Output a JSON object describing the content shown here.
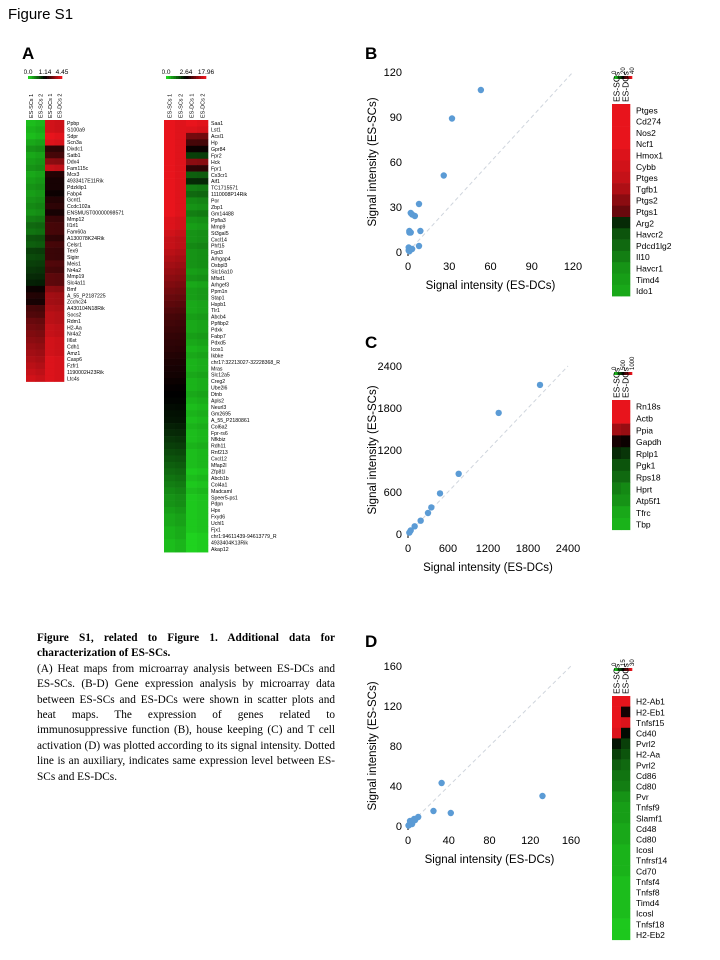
{
  "figure_title": "Figure S1",
  "panel_labels": {
    "a": "A",
    "b": "B",
    "c": "C",
    "d": "D"
  },
  "caption": {
    "heading": "Figure S1, related to Figure 1. Additional data for characterization of ES-SCs.",
    "body": "(A) Heat maps from microarray analysis between ES-DCs and ES-SCs. (B-D) Gene expression analysis by microarray data between ES-SCs and ES-DCs were shown in scatter plots and heat maps. The expression of genes related to immunosuppressive function (B), house keeping (C) and T cell activation (D) was plotted according to its signal intensity. Dotted line is an auxiliary, indicates same expression level between ES-SCs and ES-DCs."
  },
  "colors": {
    "high": "#e8141c",
    "mid": "#000000",
    "low": "#1fd21f",
    "point": "#5b9bd5",
    "diag": "#cfd5dd"
  },
  "chart_data": [
    {
      "id": "A1",
      "type": "heatmap",
      "scale_labels": [
        "0.0",
        "1.14",
        "4.45"
      ],
      "columns": [
        "ES-SCs 1",
        "ES-SCs 2",
        "ES-DCs 1",
        "ES-DCs 2"
      ],
      "rows": [
        "Ppbp",
        "S100a9",
        "Sdpr",
        "Scn3a",
        "Dixdc1",
        "Satb1",
        "Ddx4",
        "Fam115c",
        "Mcx3",
        "4933417E11Rik",
        "Pdzklip1",
        "Fabp4",
        "Gcnt1",
        "Ccdc102a",
        "ENSMUST00000098571",
        "Mmp12",
        "Il1rl1",
        "Fam60a",
        "A130078K24Rik",
        "Celsr1",
        "Tex9",
        "Sigirr",
        "Meis1",
        "Nr4a2",
        "Mmp19",
        "Slc4a11",
        "Bmf",
        "A_55_P2187225",
        "Zcchc24",
        "A430104N18Rik",
        "Socs2",
        "Rdm1",
        "H2-Aa",
        "Nr4a2",
        "Il6st",
        "Cdh1",
        "Amz1",
        "Casp6",
        "Fzfr1",
        "1190002H23Rik",
        "Ltc4s"
      ],
      "values_dc": [
        0.9,
        0.9,
        1,
        0.95,
        0.2,
        0.3,
        0.6,
        0.85,
        0.15,
        0.1,
        0.1,
        0.05,
        0.15,
        0.2,
        0.1,
        0.25,
        0.3,
        0.3,
        0.2,
        0.3,
        0.25,
        0.25,
        0.35,
        0.3,
        0.4,
        0.4,
        0.6,
        0.7,
        0.7,
        0.75,
        0.8,
        0.8,
        0.85,
        0.85,
        0.9,
        0.9,
        0.9,
        0.95,
        0.95,
        0.95,
        0.95
      ],
      "values_sc": [
        -0.9,
        -0.85,
        -0.9,
        -0.8,
        -0.7,
        -0.8,
        -0.75,
        -0.7,
        -0.8,
        -0.75,
        -0.7,
        -0.75,
        -0.7,
        -0.65,
        -0.7,
        -0.6,
        -0.5,
        -0.55,
        -0.4,
        -0.45,
        -0.3,
        -0.35,
        -0.3,
        -0.25,
        -0.2,
        -0.15,
        0.05,
        0.15,
        0.1,
        0.3,
        0.35,
        0.45,
        0.5,
        0.55,
        0.6,
        0.65,
        0.7,
        0.75,
        0.8,
        0.85,
        0.9
      ]
    },
    {
      "id": "A2",
      "type": "heatmap",
      "scale_labels": [
        "0.0",
        "2.64",
        "17.96"
      ],
      "columns": [
        "ES-SCs 1",
        "ES-SCs 2",
        "ES-DCs 1",
        "ES-DCs 2"
      ],
      "rows": [
        "Saa1",
        "Lst1",
        "Acsl1",
        "Hp",
        "Gpr84",
        "Fpr2",
        "Hck",
        "Fpr1",
        "Cx3cr1",
        "Aif1",
        "TC1715571",
        "1110008P14Rik",
        "Por",
        "Zbp1",
        "Gm14488",
        "Ppfia3",
        "Mmp9",
        "St3gal5",
        "Cxcl14",
        "Phf15",
        "Fgd3",
        "Arhgap4",
        "Osbpl3",
        "Slc16a10",
        "Mfsd1",
        "Arhgef3",
        "Ppm1n",
        "Stap1",
        "Hspb1",
        "Tlr1",
        "Abcb4",
        "Ppfibp2",
        "Pdxk",
        "Fabp7",
        "Pdxd5",
        "Icos1",
        "Ikbke",
        "chr17:32213027-32228368_R",
        "Mras",
        "Slc12a5",
        "Creg2",
        "Ube2l6",
        "Dtnb",
        "Apls2",
        "Neurl3",
        "Gm2695",
        "A_55_P2180861",
        "Col6a2",
        "Fpr-rs6",
        "Nfkbiz",
        "Rdh11",
        "Rnf213",
        "Cxcl12",
        "Mfap2l",
        "Zfp81l",
        "Abcb1b",
        "Col4a1",
        "Madcaml",
        "Speer5-ps1",
        "Pdpn",
        "Hpx",
        "Fxyd6",
        "Uchl1",
        "Fjx1",
        "chr1:94611439-94613779_R",
        "4933404K13Rik",
        "Akap12"
      ],
      "values_dc": [
        1,
        0.95,
        0.5,
        0.3,
        0.05,
        -0.3,
        0.6,
        0.2,
        -0.45,
        -0.2,
        -0.6,
        -0.5,
        -0.65,
        -0.7,
        -0.6,
        -0.7,
        -0.75,
        -0.7,
        -0.7,
        -0.65,
        -0.7,
        -0.7,
        -0.7,
        -0.75,
        -0.7,
        -0.8,
        -0.75,
        -0.75,
        -0.8,
        -0.8,
        -0.75,
        -0.8,
        -0.8,
        -0.75,
        -0.8,
        -0.85,
        -0.8,
        -0.85,
        -0.85,
        -0.8,
        -0.85,
        -0.85,
        -0.8,
        -0.85,
        -0.9,
        -0.85,
        -0.9,
        -0.85,
        -0.9,
        -0.9,
        -0.85,
        -0.9,
        -0.9,
        -0.9,
        -0.95,
        -0.9,
        -0.95,
        -0.9,
        -0.95,
        -0.95,
        -0.95,
        -0.95,
        -0.95,
        -0.95,
        -1,
        -1,
        -1
      ],
      "values_sc": [
        1,
        1,
        1,
        1,
        1,
        1,
        1,
        1,
        1,
        1,
        1,
        1,
        1,
        1,
        1,
        0.95,
        0.95,
        0.9,
        0.85,
        0.85,
        0.8,
        0.75,
        0.7,
        0.65,
        0.6,
        0.55,
        0.5,
        0.45,
        0.4,
        0.35,
        0.3,
        0.28,
        0.25,
        0.22,
        0.2,
        0.18,
        0.15,
        0.12,
        0.1,
        0.08,
        0.05,
        0.02,
        0,
        -0.02,
        -0.05,
        -0.08,
        -0.1,
        -0.15,
        -0.2,
        -0.25,
        -0.3,
        -0.35,
        -0.4,
        -0.45,
        -0.5,
        -0.55,
        -0.6,
        -0.65,
        -0.7,
        -0.7,
        -0.75,
        -0.8,
        -0.8,
        -0.85,
        -0.85,
        -0.9,
        -0.9
      ]
    },
    {
      "id": "B",
      "type": "scatter",
      "xlabel": "Signal intensity (ES-DCs)",
      "ylabel": "Signal intensity (ES-SCs)",
      "xlim": [
        0,
        120
      ],
      "ylim": [
        0,
        120
      ],
      "xticks": [
        0,
        30,
        60,
        90,
        120
      ],
      "yticks": [
        0,
        30,
        60,
        90,
        120
      ],
      "x": [
        53,
        32,
        26,
        8,
        2,
        3,
        5,
        9,
        1,
        2,
        1,
        0.5,
        3,
        8,
        0.5,
        1
      ],
      "y": [
        108,
        89,
        51,
        32,
        26,
        25,
        24,
        14,
        14,
        13,
        13,
        3,
        2,
        4,
        1,
        0.5
      ]
    },
    {
      "id": "B-heat",
      "type": "heatmap",
      "scale_labels": [
        "0",
        "20",
        "40"
      ],
      "columns": [
        "ES-SCs",
        "ES-DCs"
      ],
      "rows": [
        "Ptges",
        "Cd274",
        "Nos2",
        "Ncf1",
        "Hmox1",
        "Cybb",
        "Ptges",
        "Tgfb1",
        "Ptgs2",
        "Ptgs1",
        "Arg2",
        "Havcr2",
        "Pdcd1lg2",
        "Il10",
        "Havcr1",
        "Timd4",
        "Ido1"
      ],
      "values_sc": [
        1,
        1,
        1,
        1,
        0.95,
        0.9,
        0.85,
        0.75,
        0.6,
        0.45,
        -0.2,
        -0.4,
        -0.5,
        -0.6,
        -0.7,
        -0.75,
        -0.8
      ],
      "values_dc": [
        1,
        1,
        1,
        1,
        0.95,
        0.9,
        0.85,
        0.75,
        0.6,
        0.45,
        -0.2,
        -0.4,
        -0.5,
        -0.6,
        -0.7,
        -0.75,
        -0.8
      ]
    },
    {
      "id": "C",
      "type": "scatter",
      "xlabel": "Signal intensity (ES-DCs)",
      "ylabel": "Signal intensity (ES-SCs)",
      "xlim": [
        0,
        2400
      ],
      "ylim": [
        0,
        2400
      ],
      "xticks": [
        0,
        600,
        1200,
        1800,
        2400
      ],
      "yticks": [
        0,
        600,
        1200,
        1800,
        2400
      ],
      "x": [
        1980,
        1360,
        760,
        480,
        350,
        300,
        190,
        100,
        40,
        20
      ],
      "y": [
        2130,
        1730,
        860,
        580,
        380,
        300,
        190,
        110,
        50,
        20
      ]
    },
    {
      "id": "C-heat",
      "type": "heatmap",
      "scale_labels": [
        "0",
        "500",
        "1000"
      ],
      "columns": [
        "ES-SCs",
        "ES-DCs"
      ],
      "rows": [
        "Rn18s",
        "Actb",
        "Ppia",
        "Gapdh",
        "Rplp1",
        "Pgk1",
        "Rps18",
        "Hprt",
        "Atp5f1",
        "Tfrc",
        "Tbp"
      ],
      "values_sc": [
        1,
        1,
        0.7,
        0.1,
        -0.2,
        -0.4,
        -0.5,
        -0.6,
        -0.7,
        -0.8,
        -0.85
      ],
      "values_dc": [
        1,
        1,
        0.65,
        0.05,
        -0.25,
        -0.4,
        -0.5,
        -0.65,
        -0.7,
        -0.8,
        -0.85
      ]
    },
    {
      "id": "D",
      "type": "scatter",
      "xlabel": "Signal intensity (ES-DCs)",
      "ylabel": "Signal intensity (ES-SCs)",
      "xlim": [
        0,
        160
      ],
      "ylim": [
        0,
        160
      ],
      "xticks": [
        0,
        40,
        80,
        120,
        160
      ],
      "yticks": [
        0,
        40,
        80,
        120,
        160
      ],
      "x": [
        132,
        33,
        42,
        25,
        10,
        7,
        5,
        3,
        2,
        1,
        0.5,
        4,
        6,
        2
      ],
      "y": [
        30,
        43,
        13,
        15,
        9,
        6,
        5,
        3,
        2,
        1,
        0.5,
        2,
        7,
        5
      ]
    },
    {
      "id": "D-heat",
      "type": "heatmap",
      "scale_labels": [
        "0",
        "15",
        "30"
      ],
      "columns": [
        "ES-SCs",
        "ES-DCs"
      ],
      "rows": [
        "H2-Ab1",
        "H2-Eb1",
        "Tnfsf15",
        "Cd40",
        "Pvrl2",
        "H2-Aa",
        "Pvrl2",
        "Cd86",
        "Cd80",
        "Pvr",
        "Tnfsf9",
        "Slamf1",
        "Cd48",
        "Cd80",
        "Icosl",
        "Tnfrsf14",
        "Cd70",
        "Tnfsf4",
        "Tnfsf8",
        "Timd4",
        "Icosl",
        "Tnfsf18",
        "H2-Eb2"
      ],
      "values_sc": [
        1,
        1,
        1,
        0.95,
        -0.1,
        -0.3,
        -0.45,
        -0.55,
        -0.6,
        -0.7,
        -0.75,
        -0.75,
        -0.8,
        -0.8,
        -0.85,
        -0.85,
        -0.85,
        -0.9,
        -0.9,
        -0.9,
        -0.9,
        -0.95,
        -0.95
      ],
      "values_dc": [
        1,
        0.1,
        0.95,
        -0.05,
        -0.3,
        -0.4,
        -0.5,
        -0.55,
        -0.6,
        -0.7,
        -0.75,
        -0.75,
        -0.8,
        -0.8,
        -0.85,
        -0.85,
        -0.85,
        -0.9,
        -0.9,
        -0.9,
        -0.9,
        -0.95,
        -0.95
      ]
    }
  ]
}
